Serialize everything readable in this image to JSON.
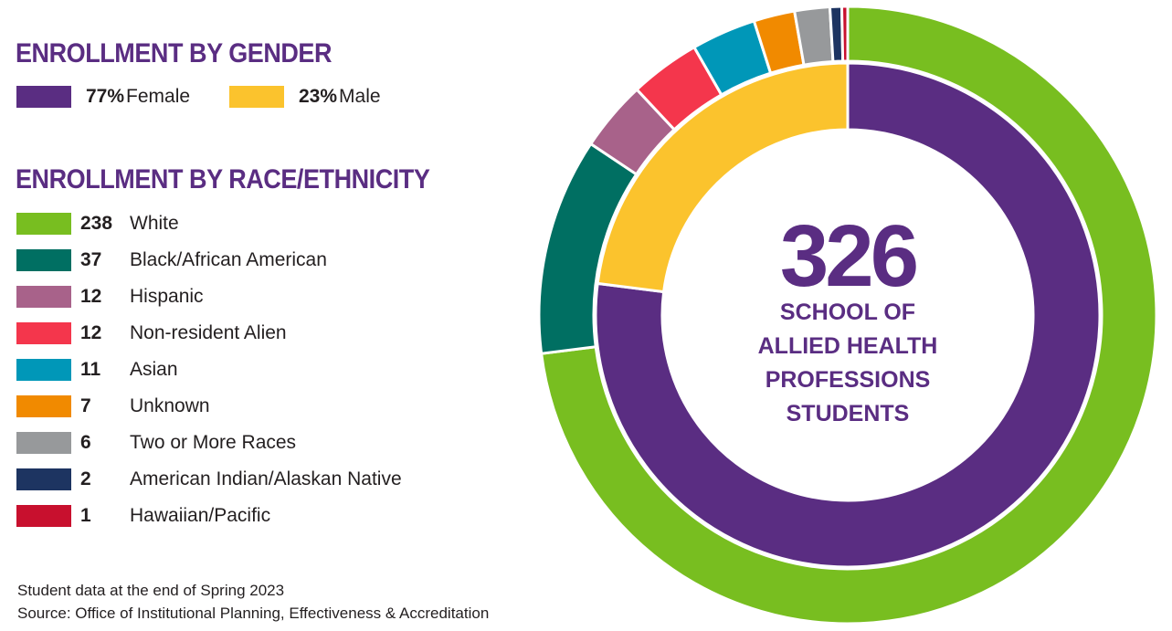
{
  "gender_heading": "ENROLLMENT BY GENDER",
  "race_heading": "ENROLLMENT BY RACE/ETHNICITY",
  "gender": [
    {
      "pct": "77%",
      "label": "Female",
      "value": 77,
      "color": "#5a2d82"
    },
    {
      "pct": "23%",
      "label": "Male",
      "value": 23,
      "color": "#fbc32d"
    }
  ],
  "race": [
    {
      "count": "238",
      "label": "White",
      "value": 238,
      "color": "#78be20"
    },
    {
      "count": "37",
      "label": "Black/African American",
      "value": 37,
      "color": "#006f62"
    },
    {
      "count": "12",
      "label": "Hispanic",
      "value": 12,
      "color": "#a8628a"
    },
    {
      "count": "12",
      "label": "Non-resident Alien",
      "value": 12,
      "color": "#f4364c"
    },
    {
      "count": "11",
      "label": "Asian",
      "value": 11,
      "color": "#0097b8"
    },
    {
      "count": "7",
      "label": "Unknown",
      "value": 7,
      "color": "#f18a00"
    },
    {
      "count": "6",
      "label": "Two or More Races",
      "value": 6,
      "color": "#97999b"
    },
    {
      "count": "2",
      "label": "American Indian/Alaskan Native",
      "value": 2,
      "color": "#1d3461"
    },
    {
      "count": "1",
      "label": "Hawaiian/Pacific",
      "value": 1,
      "color": "#c8102e"
    }
  ],
  "center": {
    "total": "326",
    "lines": [
      "SCHOOL OF",
      "ALLIED HEALTH",
      "PROFESSIONS",
      "STUDENTS"
    ]
  },
  "footnotes": {
    "data_note": "Student data at the end of Spring 2023",
    "source": "Source: Office of Institutional Planning, Effectiveness & Accreditation"
  },
  "chart_data": {
    "type": "pie",
    "title": "",
    "total": 326,
    "series": [
      {
        "name": "Gender",
        "categories": [
          "Female",
          "Male"
        ],
        "values": [
          77,
          23
        ],
        "unit": "%"
      },
      {
        "name": "Race/Ethnicity",
        "categories": [
          "White",
          "Black/African American",
          "Hispanic",
          "Non-resident Alien",
          "Asian",
          "Unknown",
          "Two or More Races",
          "American Indian/Alaskan Native",
          "Hawaiian/Pacific"
        ],
        "values": [
          238,
          37,
          12,
          12,
          11,
          7,
          6,
          2,
          1
        ]
      }
    ]
  }
}
